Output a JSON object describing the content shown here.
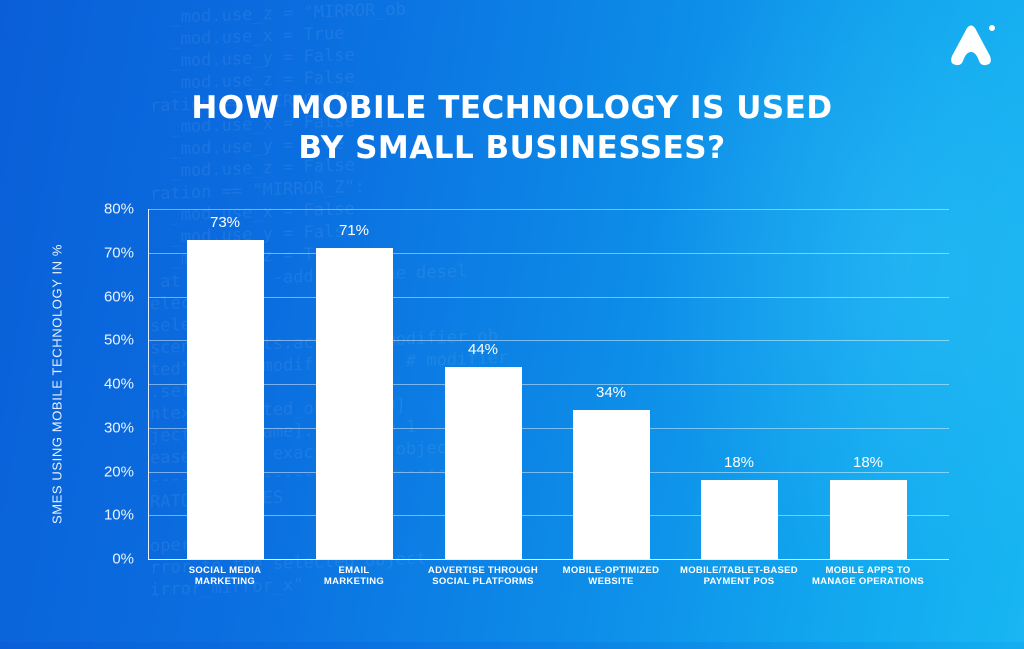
{
  "brand": {
    "logo": "a-shaped-logo-icon"
  },
  "title_lines": [
    "HOW MOBILE TECHNOLOGY IS USED",
    "BY SMALL BUSINESSES?"
  ],
  "colors": {
    "background_start": "#0a5fd8",
    "background_end": "#18b6f2",
    "bar": "#ffffff",
    "text": "#ffffff"
  },
  "chart_data": {
    "type": "bar",
    "title": "HOW MOBILE TECHNOLOGY IS USED BY SMALL BUSINESSES?",
    "xlabel": "",
    "ylabel": "SMES USING MOBILE TECHNOLOGY IN %",
    "ylim": [
      0,
      80
    ],
    "yticks": [
      "0%",
      "10%",
      "20%",
      "30%",
      "40%",
      "50%",
      "60%",
      "70%",
      "80%"
    ],
    "grid": true,
    "legend": null,
    "categories": [
      "SOCIAL MEDIA MARKETING",
      "EMAIL MARKETING",
      "ADVERTISE THROUGH SOCIAL PLATFORMS",
      "MOBILE-OPTIMIZED WEBSITE",
      "MOBILE/TABLET-BASED PAYMENT POS",
      "MOBILE APPS TO MANAGE OPERATIONS"
    ],
    "category_lines": [
      [
        "SOCIAL MEDIA",
        "MARKETING"
      ],
      [
        "EMAIL",
        "MARKETING"
      ],
      [
        "ADVERTISE THROUGH",
        "SOCIAL PLATFORMS"
      ],
      [
        "MOBILE-OPTIMIZED",
        "WEBSITE"
      ],
      [
        "MOBILE/TABLET-BASED",
        "PAYMENT POS"
      ],
      [
        "MOBILE APPS TO",
        "MANAGE OPERATIONS"
      ]
    ],
    "values": [
      73,
      71,
      44,
      34,
      18,
      18
    ],
    "value_labels": [
      "73%",
      "71%",
      "44%",
      "34%",
      "18%",
      "18%"
    ]
  }
}
